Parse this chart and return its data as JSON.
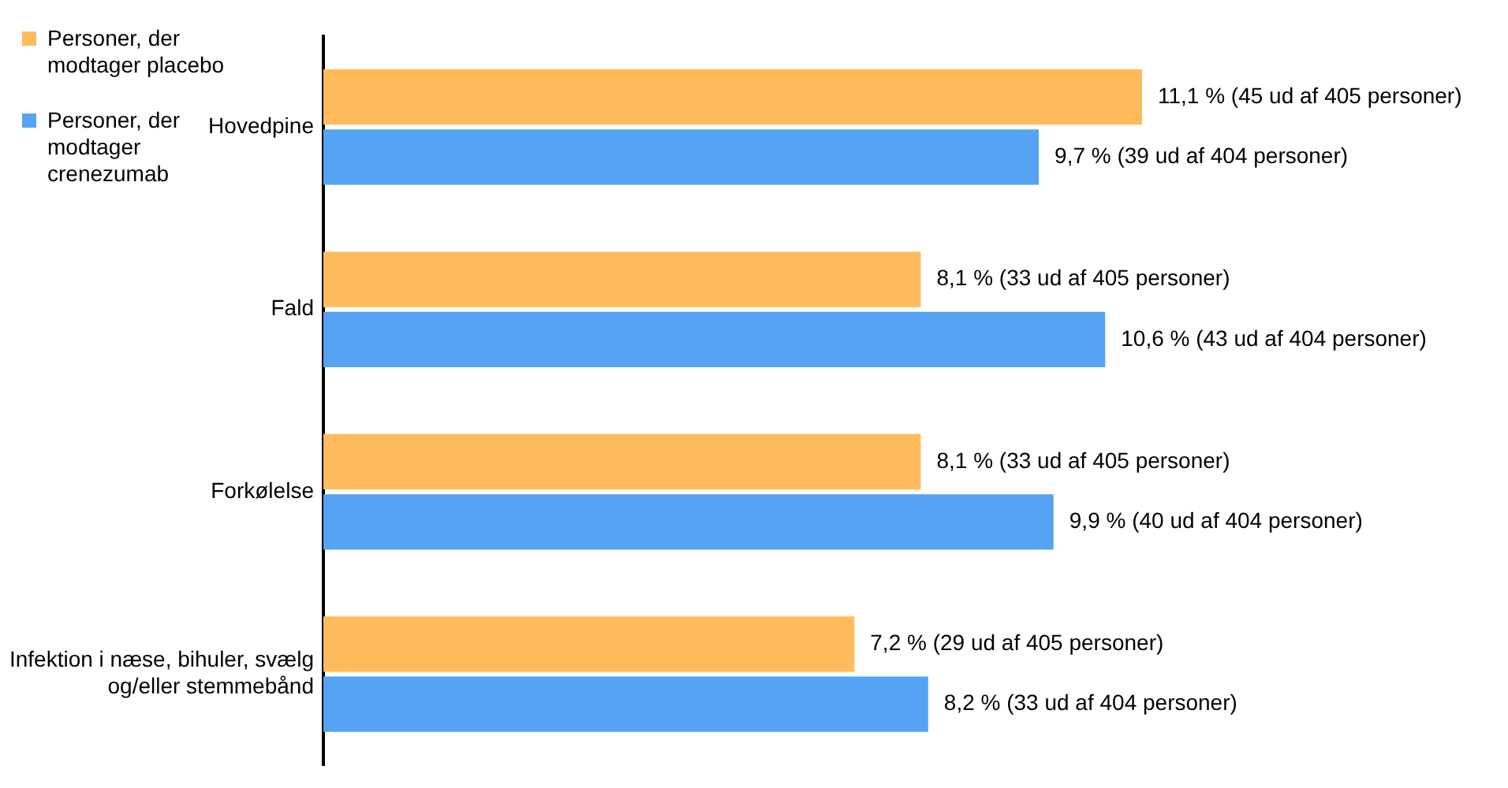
{
  "chart_data": {
    "type": "bar",
    "orientation": "horizontal",
    "legend": "top left",
    "categories": [
      "Hovedpine",
      "Fald",
      "Forkølelse",
      "Infektion i næse, bihuler, svælg og/eller stemmebånd"
    ],
    "series": [
      {
        "name": "Personer, der modtager placebo",
        "color": "#ffbb5c",
        "values": [
          11.1,
          8.1,
          8.1,
          7.2
        ],
        "value_labels": [
          "11,1 % (45 ud af 405 personer)",
          "8,1 % (33 ud af 405 personer)",
          "8,1 % (33 ud af 405 personer)",
          "7,2 % (29 ud af 405 personer)"
        ]
      },
      {
        "name": "Personer, der modtager crenezumab",
        "color": "#55a3f5",
        "values": [
          9.7,
          10.6,
          9.9,
          8.2
        ],
        "value_labels": [
          "9,7 % (39 ud af 404 personer)",
          "10,6 % (43 ud af 404 personer)",
          "9,9 % (40 ud af 404 personer)",
          "8,2 % (33 ud af 404 personer)"
        ]
      }
    ]
  }
}
